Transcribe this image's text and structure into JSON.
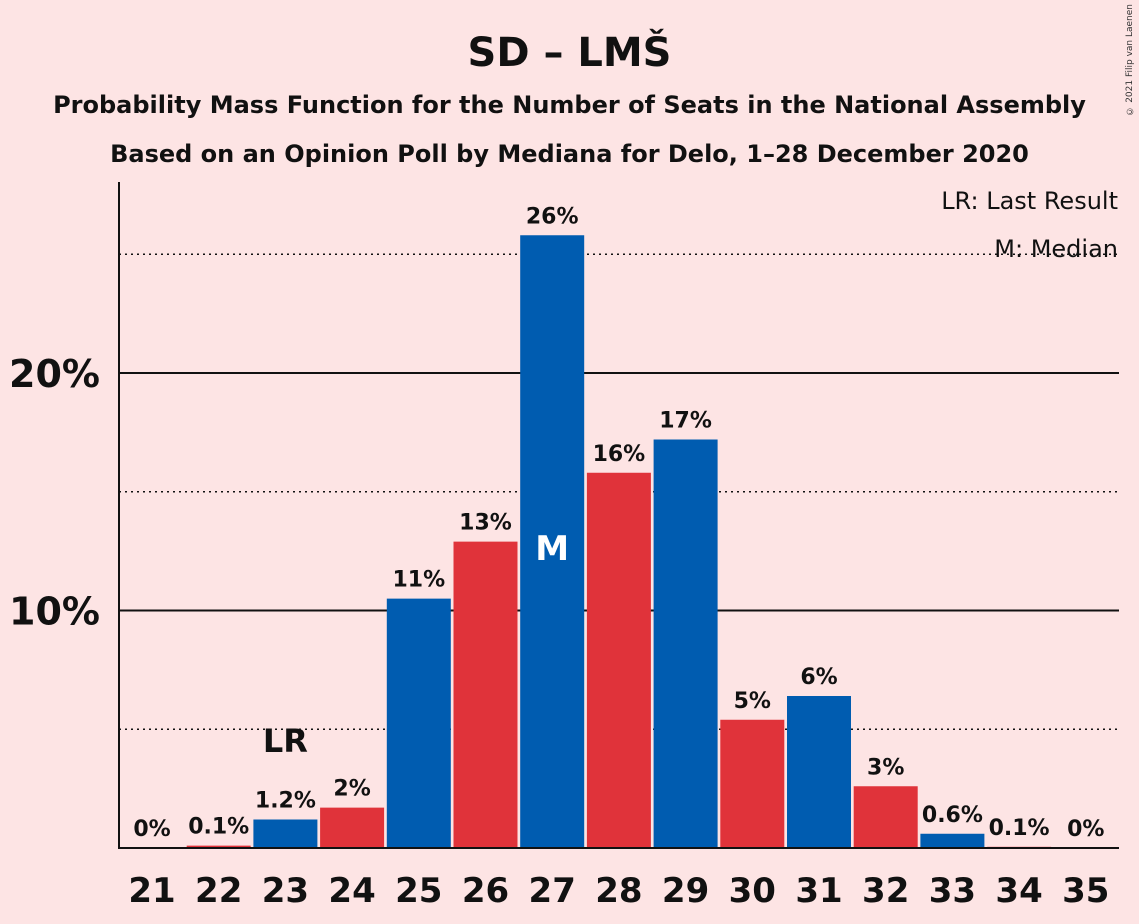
{
  "copyright": "© 2021 Filip van Laenen",
  "colors": {
    "background": "#fde4e4",
    "blue": "#005cb0",
    "red": "#e0333a",
    "text": "#111111"
  },
  "chart_data": {
    "type": "bar",
    "title": "SD – LMŠ",
    "subtitle1": "Probability Mass Function for the Number of Seats in the National Assembly",
    "subtitle2": "Based on an Opinion Poll by Mediana for Delo, 1–28 December 2020",
    "categories": [
      "21",
      "22",
      "23",
      "24",
      "25",
      "26",
      "27",
      "28",
      "29",
      "30",
      "31",
      "32",
      "33",
      "34",
      "35"
    ],
    "values": [
      0,
      0.1,
      1.2,
      1.7,
      10.5,
      12.9,
      25.8,
      15.8,
      17.2,
      5.4,
      6.4,
      2.6,
      0.6,
      0.05,
      0
    ],
    "value_labels": [
      "0%",
      "0.1%",
      "1.2%",
      "2%",
      "11%",
      "13%",
      "26%",
      "16%",
      "17%",
      "5%",
      "6%",
      "3%",
      "0.6%",
      "0.1%",
      "0%"
    ],
    "bar_colors": [
      "blue",
      "red",
      "blue",
      "red",
      "blue",
      "red",
      "blue",
      "red",
      "blue",
      "red",
      "blue",
      "red",
      "blue",
      "red",
      "blue"
    ],
    "ylim": [
      0,
      28
    ],
    "y_ticks_solid": [
      10,
      20
    ],
    "y_tick_labels": [
      "10%",
      "20%"
    ],
    "y_gridlines_dotted": [
      5,
      15,
      25
    ],
    "last_result": {
      "category": "23",
      "label": "LR"
    },
    "median": {
      "category": "27",
      "label": "M"
    },
    "legend": [
      "LR: Last Result",
      "M: Median"
    ],
    "legend_position": "top-right"
  }
}
